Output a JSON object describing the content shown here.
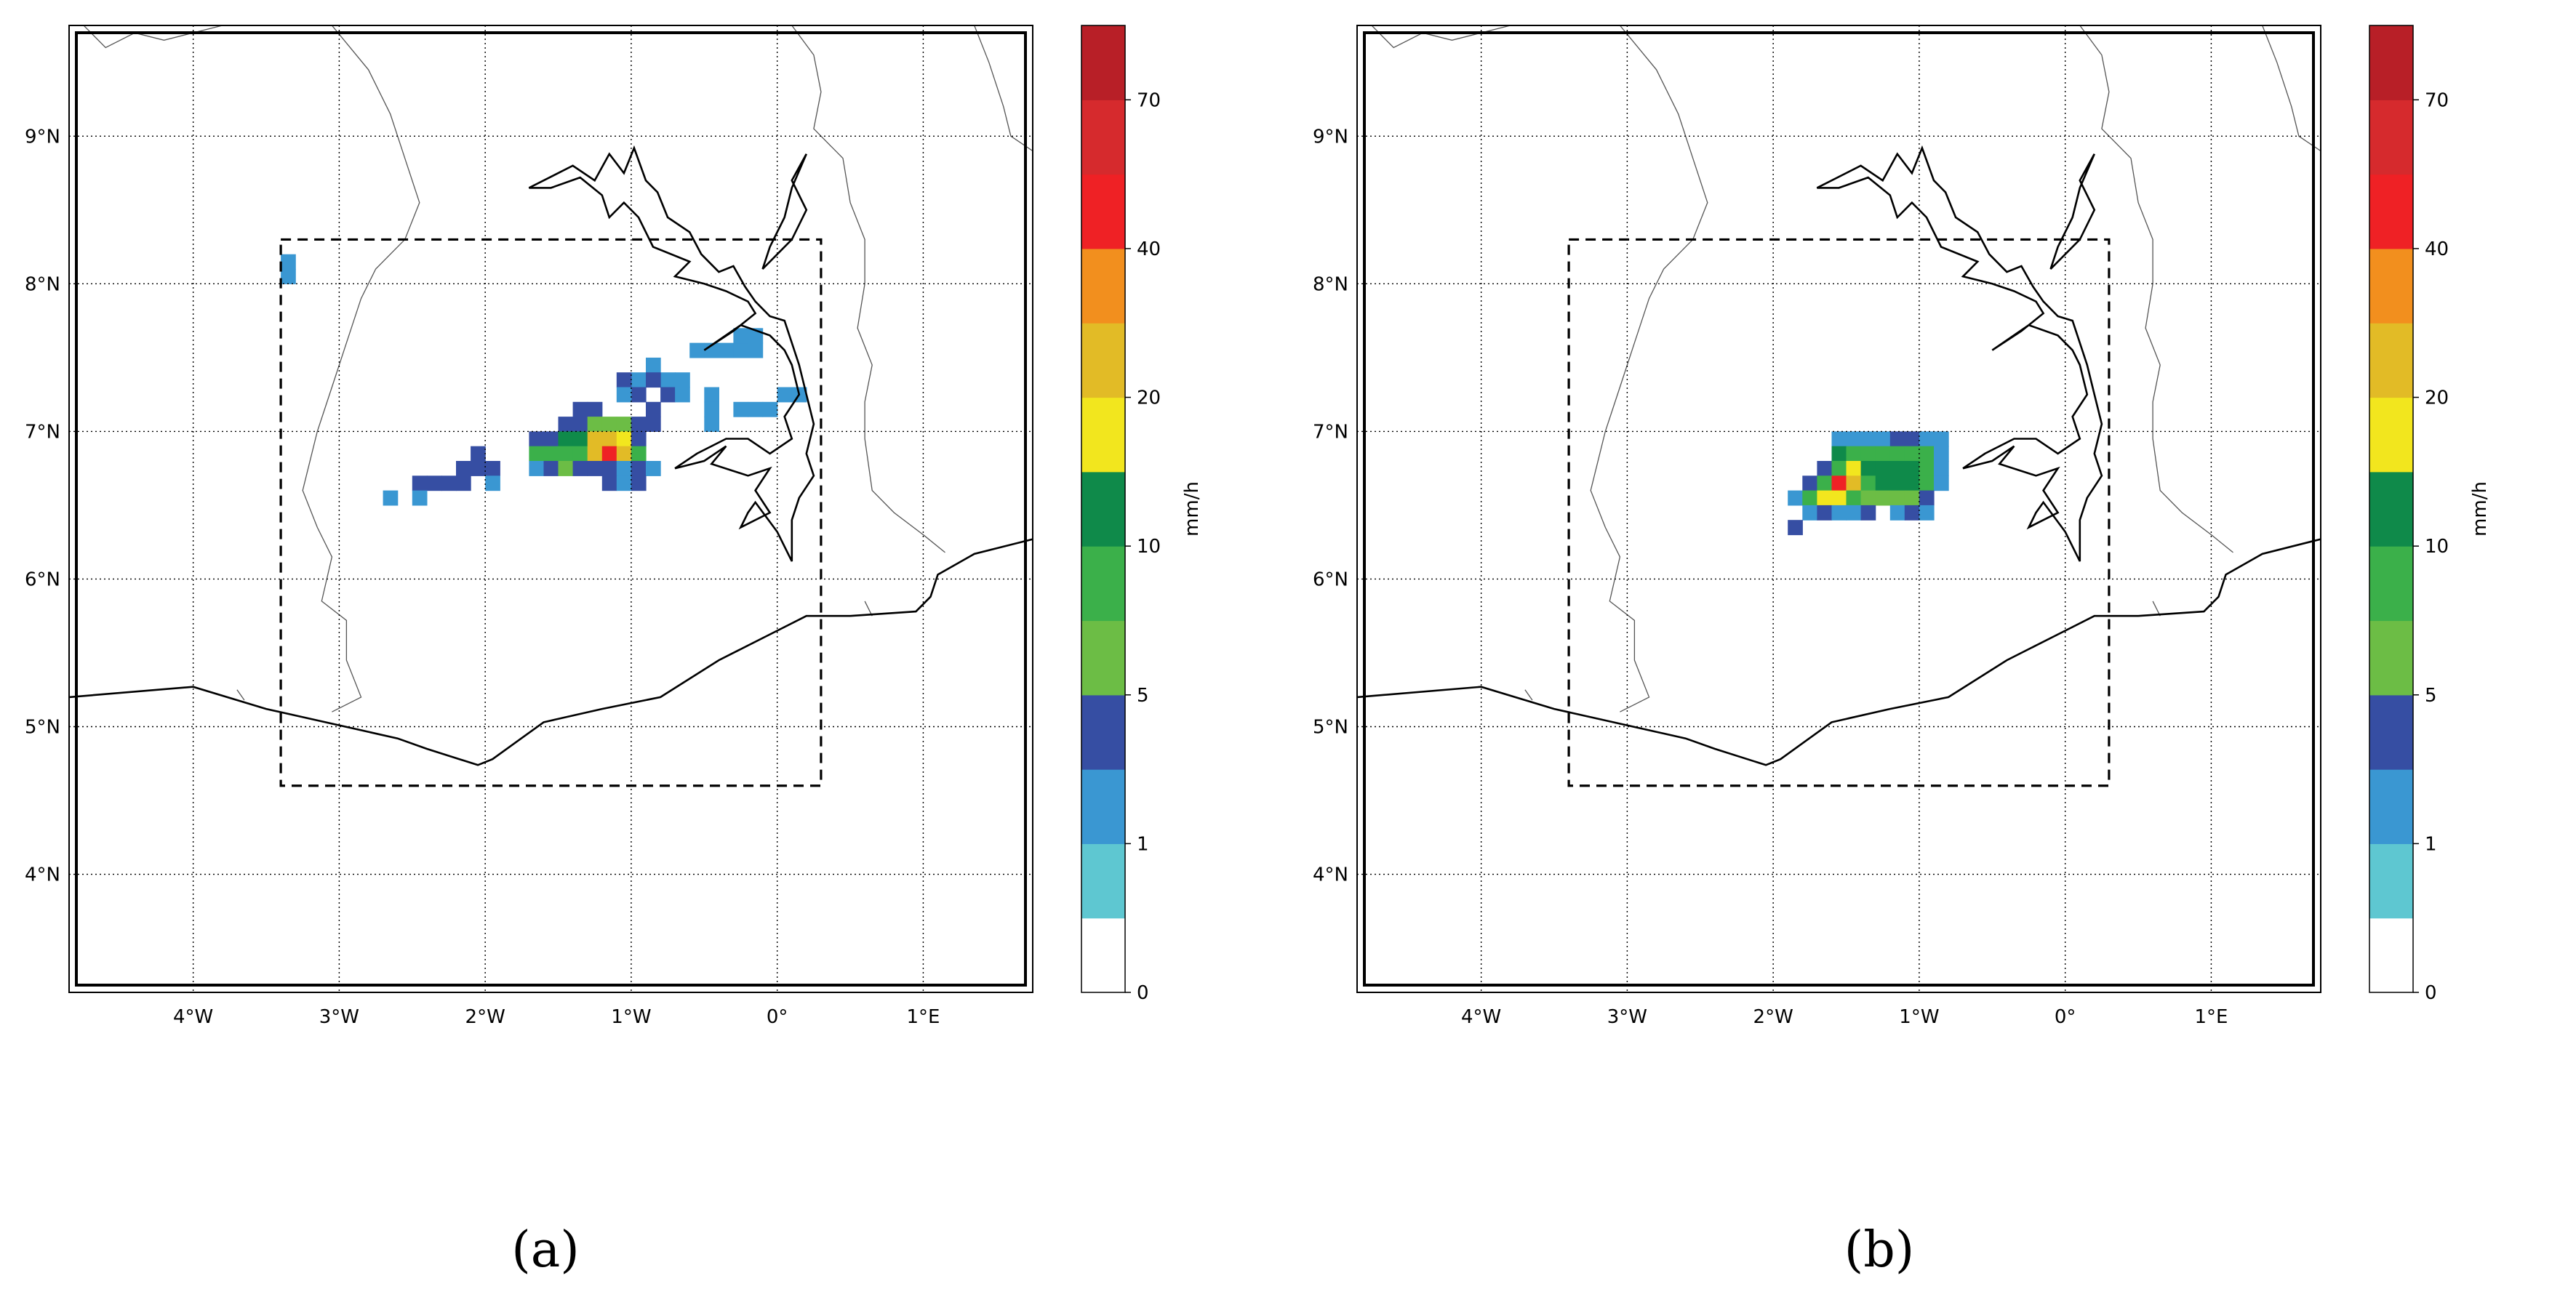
{
  "panels": [
    {
      "id": "a",
      "label": "(a)",
      "cells": [
        [
          -3.35,
          8.15,
          "c1"
        ],
        [
          -3.35,
          8.05,
          "c1"
        ],
        [
          -0.55,
          7.55,
          "c1"
        ],
        [
          -0.45,
          7.55,
          "c1"
        ],
        [
          -0.35,
          7.55,
          "c1"
        ],
        [
          -0.25,
          7.55,
          "c1"
        ],
        [
          -0.25,
          7.65,
          "c1"
        ],
        [
          -0.15,
          7.65,
          "c1"
        ],
        [
          -0.15,
          7.55,
          "c1"
        ],
        [
          -0.85,
          7.45,
          "c1"
        ],
        [
          -0.95,
          7.35,
          "c1"
        ],
        [
          -0.75,
          7.35,
          "c1"
        ],
        [
          -0.65,
          7.35,
          "c1"
        ],
        [
          -0.85,
          7.35,
          "c2"
        ],
        [
          -1.05,
          7.35,
          "c2"
        ],
        [
          -0.95,
          7.25,
          "c2"
        ],
        [
          -0.75,
          7.25,
          "c2"
        ],
        [
          -1.05,
          7.25,
          "c1"
        ],
        [
          -0.65,
          7.25,
          "c1"
        ],
        [
          -1.25,
          7.15,
          "c2"
        ],
        [
          -1.35,
          7.15,
          "c2"
        ],
        [
          -0.85,
          7.15,
          "c2"
        ],
        [
          -0.45,
          7.25,
          "c1"
        ],
        [
          -0.45,
          7.15,
          "c1"
        ],
        [
          -0.45,
          7.05,
          "c1"
        ],
        [
          -0.25,
          7.15,
          "c1"
        ],
        [
          -0.15,
          7.15,
          "c1"
        ],
        [
          -0.05,
          7.15,
          "c1"
        ],
        [
          0.05,
          7.25,
          "c1"
        ],
        [
          0.15,
          7.25,
          "c1"
        ],
        [
          -1.45,
          7.05,
          "c2"
        ],
        [
          -1.35,
          7.05,
          "c2"
        ],
        [
          -1.25,
          7.05,
          "c4"
        ],
        [
          -1.15,
          7.05,
          "c4"
        ],
        [
          -1.05,
          7.05,
          "c4"
        ],
        [
          -0.95,
          7.05,
          "c2"
        ],
        [
          -0.85,
          7.05,
          "c2"
        ],
        [
          -1.65,
          6.95,
          "c2"
        ],
        [
          -1.55,
          6.95,
          "c2"
        ],
        [
          -1.45,
          6.95,
          "c6"
        ],
        [
          -1.35,
          6.95,
          "c6"
        ],
        [
          -1.25,
          6.95,
          "c8"
        ],
        [
          -1.15,
          6.95,
          "c8"
        ],
        [
          -1.05,
          6.95,
          "c7"
        ],
        [
          -0.95,
          6.95,
          "c2"
        ],
        [
          -1.65,
          6.85,
          "c5"
        ],
        [
          -1.55,
          6.85,
          "c5"
        ],
        [
          -1.45,
          6.85,
          "c5"
        ],
        [
          -1.35,
          6.85,
          "c5"
        ],
        [
          -1.25,
          6.85,
          "c8"
        ],
        [
          -1.15,
          6.85,
          "c9"
        ],
        [
          -1.05,
          6.85,
          "c8"
        ],
        [
          -0.95,
          6.85,
          "c5"
        ],
        [
          -1.65,
          6.75,
          "c1"
        ],
        [
          -1.55,
          6.75,
          "c2"
        ],
        [
          -1.45,
          6.75,
          "c4"
        ],
        [
          -1.35,
          6.75,
          "c2"
        ],
        [
          -1.25,
          6.75,
          "c2"
        ],
        [
          -1.15,
          6.75,
          "c2"
        ],
        [
          -1.05,
          6.75,
          "c1"
        ],
        [
          -0.95,
          6.75,
          "c2"
        ],
        [
          -0.85,
          6.75,
          "c1"
        ],
        [
          -1.15,
          6.65,
          "c2"
        ],
        [
          -1.05,
          6.65,
          "c1"
        ],
        [
          -0.95,
          6.65,
          "c2"
        ],
        [
          -2.05,
          6.85,
          "c2"
        ],
        [
          -2.15,
          6.75,
          "c2"
        ],
        [
          -2.05,
          6.75,
          "c2"
        ],
        [
          -1.95,
          6.75,
          "c2"
        ],
        [
          -2.45,
          6.65,
          "c2"
        ],
        [
          -2.35,
          6.65,
          "c2"
        ],
        [
          -2.25,
          6.65,
          "c2"
        ],
        [
          -2.15,
          6.65,
          "c2"
        ],
        [
          -1.95,
          6.65,
          "c1"
        ],
        [
          -2.45,
          6.55,
          "c1"
        ],
        [
          -2.65,
          6.55,
          "c1"
        ]
      ]
    },
    {
      "id": "b",
      "label": "(b)",
      "cells": [
        [
          -1.55,
          6.95,
          "c1"
        ],
        [
          -1.45,
          6.95,
          "c1"
        ],
        [
          -1.35,
          6.95,
          "c1"
        ],
        [
          -1.25,
          6.95,
          "c1"
        ],
        [
          -1.15,
          6.95,
          "c2"
        ],
        [
          -1.05,
          6.95,
          "c2"
        ],
        [
          -0.95,
          6.95,
          "c1"
        ],
        [
          -0.85,
          6.95,
          "c1"
        ],
        [
          -1.55,
          6.85,
          "c6"
        ],
        [
          -1.45,
          6.85,
          "c5"
        ],
        [
          -1.35,
          6.85,
          "c5"
        ],
        [
          -1.25,
          6.85,
          "c5"
        ],
        [
          -1.15,
          6.85,
          "c5"
        ],
        [
          -1.05,
          6.85,
          "c5"
        ],
        [
          -0.95,
          6.85,
          "c5"
        ],
        [
          -0.85,
          6.85,
          "c1"
        ],
        [
          -1.65,
          6.75,
          "c2"
        ],
        [
          -1.55,
          6.75,
          "c5"
        ],
        [
          -1.45,
          6.75,
          "c7"
        ],
        [
          -1.35,
          6.75,
          "c6"
        ],
        [
          -1.25,
          6.75,
          "c6"
        ],
        [
          -1.15,
          6.75,
          "c6"
        ],
        [
          -1.05,
          6.75,
          "c6"
        ],
        [
          -0.95,
          6.75,
          "c5"
        ],
        [
          -0.85,
          6.75,
          "c1"
        ],
        [
          -1.75,
          6.65,
          "c2"
        ],
        [
          -1.65,
          6.65,
          "c5"
        ],
        [
          -1.55,
          6.65,
          "c9"
        ],
        [
          -1.45,
          6.65,
          "c8"
        ],
        [
          -1.35,
          6.65,
          "c5"
        ],
        [
          -1.25,
          6.65,
          "c6"
        ],
        [
          -1.15,
          6.65,
          "c6"
        ],
        [
          -1.05,
          6.65,
          "c6"
        ],
        [
          -0.95,
          6.65,
          "c5"
        ],
        [
          -0.85,
          6.65,
          "c1"
        ],
        [
          -1.85,
          6.55,
          "c1"
        ],
        [
          -1.75,
          6.55,
          "c5"
        ],
        [
          -1.65,
          6.55,
          "c7"
        ],
        [
          -1.55,
          6.55,
          "c7"
        ],
        [
          -1.45,
          6.55,
          "c5"
        ],
        [
          -1.35,
          6.55,
          "c4"
        ],
        [
          -1.25,
          6.55,
          "c4"
        ],
        [
          -1.15,
          6.55,
          "c4"
        ],
        [
          -1.05,
          6.55,
          "c4"
        ],
        [
          -0.95,
          6.55,
          "c2"
        ],
        [
          -1.75,
          6.45,
          "c1"
        ],
        [
          -1.65,
          6.45,
          "c2"
        ],
        [
          -1.55,
          6.45,
          "c1"
        ],
        [
          -1.45,
          6.45,
          "c1"
        ],
        [
          -1.35,
          6.45,
          "c2"
        ],
        [
          -1.15,
          6.45,
          "c1"
        ],
        [
          -1.05,
          6.45,
          "c2"
        ],
        [
          -0.95,
          6.45,
          "c1"
        ],
        [
          -1.85,
          6.35,
          "c2"
        ]
      ]
    }
  ],
  "map": {
    "lon_range": [
      -4.85,
      1.75
    ],
    "lat_range": [
      3.2,
      9.75
    ],
    "lon_ticks": [
      -4,
      -3,
      -2,
      -1,
      0,
      1
    ],
    "lon_labels": [
      "4°W",
      "3°W",
      "2°W",
      "1°W",
      "0°",
      "1°E"
    ],
    "lat_ticks": [
      4,
      5,
      6,
      7,
      8,
      9
    ],
    "lat_labels": [
      "4°N",
      "5°N",
      "6°N",
      "7°N",
      "8°N",
      "9°N"
    ],
    "box": {
      "lon_min": -3.4,
      "lon_max": 0.3,
      "lat_min": 4.6,
      "lat_max": 8.3
    },
    "coastline": [
      [
        -4.85,
        5.2
      ],
      [
        -4.0,
        5.27
      ],
      [
        -3.5,
        5.12
      ],
      [
        -2.6,
        4.92
      ],
      [
        -2.4,
        4.85
      ],
      [
        -2.05,
        4.74
      ],
      [
        -1.95,
        4.78
      ],
      [
        -1.6,
        5.03
      ],
      [
        -1.2,
        5.12
      ],
      [
        -0.8,
        5.2
      ],
      [
        -0.4,
        5.45
      ],
      [
        0.0,
        5.65
      ],
      [
        0.2,
        5.75
      ],
      [
        0.5,
        5.75
      ],
      [
        0.95,
        5.78
      ],
      [
        1.05,
        5.88
      ],
      [
        1.1,
        6.03
      ],
      [
        1.35,
        6.17
      ],
      [
        1.75,
        6.27
      ]
    ],
    "lake": [
      [
        -1.7,
        8.65
      ],
      [
        -1.4,
        8.8
      ],
      [
        -1.25,
        8.7
      ],
      [
        -1.15,
        8.88
      ],
      [
        -1.05,
        8.75
      ],
      [
        -0.98,
        8.92
      ],
      [
        -0.9,
        8.7
      ],
      [
        -0.82,
        8.62
      ],
      [
        -0.75,
        8.45
      ],
      [
        -0.6,
        8.35
      ],
      [
        -0.52,
        8.2
      ],
      [
        -0.4,
        8.08
      ],
      [
        -0.3,
        8.12
      ],
      [
        -0.22,
        7.98
      ],
      [
        -0.15,
        7.88
      ],
      [
        -0.05,
        7.78
      ],
      [
        0.05,
        7.75
      ],
      [
        0.1,
        7.6
      ],
      [
        0.15,
        7.45
      ],
      [
        0.2,
        7.25
      ],
      [
        0.25,
        7.05
      ],
      [
        0.2,
        6.85
      ],
      [
        0.25,
        6.7
      ],
      [
        0.15,
        6.55
      ],
      [
        0.1,
        6.4
      ],
      [
        0.1,
        6.12
      ],
      [
        0.0,
        6.32
      ],
      [
        -0.15,
        6.52
      ],
      [
        -0.2,
        6.45
      ],
      [
        -0.25,
        6.35
      ],
      [
        -0.05,
        6.45
      ],
      [
        -0.15,
        6.6
      ],
      [
        -0.05,
        6.75
      ],
      [
        -0.2,
        6.7
      ],
      [
        -0.45,
        6.78
      ],
      [
        -0.35,
        6.9
      ],
      [
        -0.5,
        6.8
      ],
      [
        -0.7,
        6.75
      ],
      [
        -0.55,
        6.85
      ],
      [
        -0.35,
        6.95
      ],
      [
        -0.2,
        6.95
      ],
      [
        -0.05,
        6.85
      ],
      [
        0.1,
        6.95
      ],
      [
        0.05,
        7.1
      ],
      [
        0.15,
        7.25
      ],
      [
        0.1,
        7.45
      ],
      [
        0.05,
        7.55
      ],
      [
        -0.05,
        7.65
      ],
      [
        -0.25,
        7.72
      ],
      [
        -0.5,
        7.55
      ],
      [
        -0.3,
        7.68
      ],
      [
        -0.15,
        7.8
      ],
      [
        -0.2,
        7.88
      ],
      [
        -0.35,
        7.95
      ],
      [
        -0.5,
        8.0
      ],
      [
        -0.7,
        8.05
      ],
      [
        -0.6,
        8.15
      ],
      [
        -0.85,
        8.25
      ],
      [
        -0.95,
        8.45
      ],
      [
        -1.05,
        8.55
      ],
      [
        -1.15,
        8.45
      ],
      [
        -1.2,
        8.6
      ],
      [
        -1.35,
        8.72
      ],
      [
        -1.55,
        8.65
      ],
      [
        -1.7,
        8.65
      ]
    ],
    "lake_arm": [
      [
        0.0,
        8.2
      ],
      [
        0.1,
        8.3
      ],
      [
        0.2,
        8.5
      ],
      [
        0.1,
        8.7
      ],
      [
        0.2,
        8.88
      ],
      [
        0.1,
        8.65
      ],
      [
        0.05,
        8.45
      ],
      [
        -0.05,
        8.25
      ],
      [
        -0.1,
        8.1
      ],
      [
        0.0,
        8.2
      ]
    ],
    "borders": [
      [
        [
          -4.75,
          9.75
        ],
        [
          -4.6,
          9.6
        ],
        [
          -4.4,
          9.7
        ],
        [
          -4.2,
          9.65
        ],
        [
          -3.8,
          9.75
        ]
      ],
      [
        [
          -3.05,
          9.75
        ],
        [
          -2.8,
          9.45
        ],
        [
          -2.65,
          9.15
        ],
        [
          -2.55,
          8.85
        ],
        [
          -2.45,
          8.55
        ],
        [
          -2.55,
          8.3
        ],
        [
          -2.75,
          8.1
        ],
        [
          -2.85,
          7.9
        ],
        [
          -2.95,
          7.6
        ],
        [
          -3.05,
          7.3
        ],
        [
          -3.15,
          7.0
        ],
        [
          -3.25,
          6.6
        ],
        [
          -3.15,
          6.35
        ],
        [
          -3.05,
          6.15
        ],
        [
          -3.12,
          5.85
        ],
        [
          -2.95,
          5.72
        ],
        [
          -2.95,
          5.45
        ],
        [
          -2.85,
          5.2
        ],
        [
          -3.05,
          5.1
        ]
      ],
      [
        [
          0.1,
          9.75
        ],
        [
          0.25,
          9.55
        ],
        [
          0.3,
          9.3
        ],
        [
          0.25,
          9.05
        ],
        [
          0.45,
          8.85
        ],
        [
          0.5,
          8.55
        ],
        [
          0.6,
          8.3
        ],
        [
          0.6,
          8.0
        ],
        [
          0.55,
          7.7
        ],
        [
          0.65,
          7.45
        ],
        [
          0.6,
          7.2
        ],
        [
          0.6,
          6.95
        ],
        [
          0.65,
          6.6
        ],
        [
          0.8,
          6.45
        ],
        [
          1.0,
          6.3
        ],
        [
          1.15,
          6.18
        ]
      ],
      [
        [
          1.35,
          9.75
        ],
        [
          1.45,
          9.5
        ],
        [
          1.55,
          9.2
        ],
        [
          1.6,
          9.0
        ],
        [
          1.75,
          8.9
        ]
      ],
      [
        [
          0.6,
          5.85
        ],
        [
          0.65,
          5.75
        ]
      ],
      [
        [
          -3.65,
          5.18
        ],
        [
          -3.7,
          5.25
        ]
      ]
    ]
  },
  "colorbar": {
    "unit": "mm/h",
    "levels": [
      0,
      0.5,
      1,
      2,
      5,
      7,
      10,
      15,
      20,
      30,
      40,
      50,
      70,
      80
    ],
    "tick_values": [
      0,
      1,
      5,
      10,
      20,
      40,
      70
    ],
    "tick_labels": [
      "0",
      "1",
      "5",
      "10",
      "20",
      "40",
      "70"
    ],
    "colors": {
      "c0": "#ffffff",
      "c1": "#3a97d2",
      "c2": "#364ea3",
      "c3": "#6cbd45",
      "c4": "#6cbd45",
      "c5": "#3bb04a",
      "c6": "#0f8a4a",
      "c7": "#f2e61e",
      "c8": "#e2bb26",
      "c9": "#ef2125"
    },
    "bands": [
      "#ffffff",
      "#5ec7d1",
      "#3a97d2",
      "#364ea3",
      "#6cbd45",
      "#3bb04a",
      "#0f8a4a",
      "#f2e61e",
      "#e2bb26",
      "#f28f1e",
      "#ef2125",
      "#d62a2d",
      "#b81f27"
    ]
  }
}
